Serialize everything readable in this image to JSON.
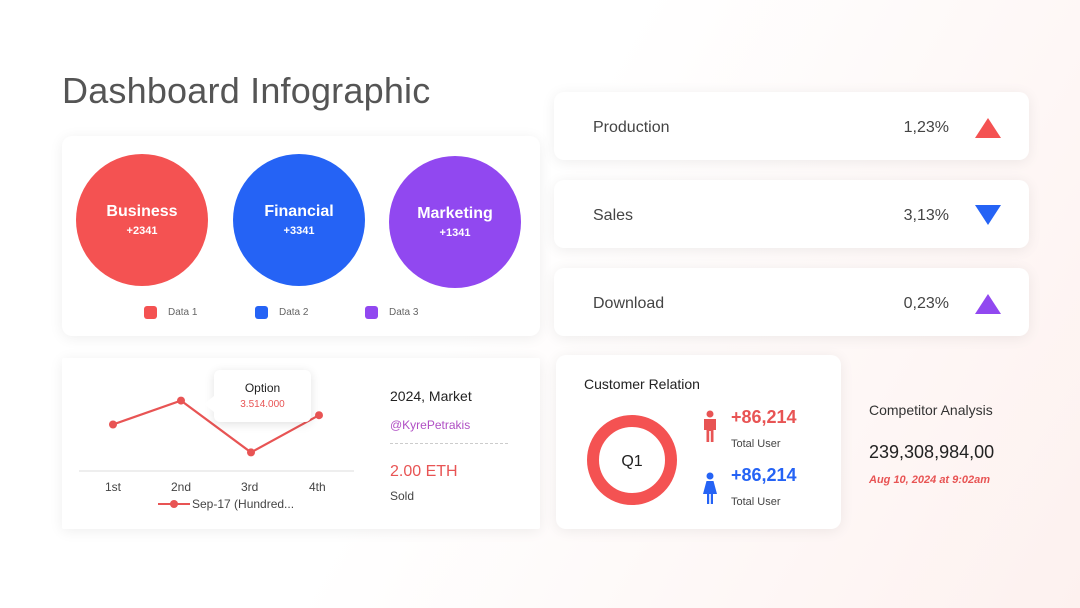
{
  "title": "Dashboard Infographic",
  "colors": {
    "red": "#f45252",
    "blue": "#2563f5",
    "purple": "#9148f0"
  },
  "categories": [
    {
      "label": "Business",
      "value": "+2341",
      "legend": "Data 1",
      "color": "#f45252"
    },
    {
      "label": "Financial",
      "value": "+3341",
      "legend": "Data 2",
      "color": "#2563f5"
    },
    {
      "label": "Marketing",
      "value": "+1341",
      "legend": "Data 3",
      "color": "#9148f0"
    }
  ],
  "stats": [
    {
      "label": "Production",
      "value": "1,23%",
      "trend": "up",
      "color": "#f45252"
    },
    {
      "label": "Sales",
      "value": "3,13%",
      "trend": "down",
      "color": "#2563f5"
    },
    {
      "label": "Download",
      "value": "0,23%",
      "trend": "up",
      "color": "#9148f0"
    }
  ],
  "chart_data": {
    "type": "line",
    "categories": [
      "1st",
      "2nd",
      "3rd",
      "4th"
    ],
    "series": [
      {
        "name": "Sep-17 (Hundred...",
        "values": [
          3.0,
          3.514,
          2.4,
          3.2
        ],
        "color": "#e85454"
      }
    ],
    "tooltip": {
      "title": "Option",
      "value": "3.514.000"
    },
    "grid": false
  },
  "market": {
    "title": "2024, Market",
    "handle": "@KyrePetrakis",
    "price": "2.00 ETH",
    "sub": "Sold"
  },
  "customer_relation": {
    "title": "Customer Relation",
    "donut_label": "Q1",
    "donut_split": [
      0.92,
      0.08
    ],
    "male": {
      "value": "+86,214",
      "label": "Total User",
      "color": "#e85454"
    },
    "female": {
      "value": "+86,214",
      "label": "Total User",
      "color": "#2563f5"
    }
  },
  "competitor": {
    "title": "Competitor Analysis",
    "value": "239,308,984,00",
    "date": "Aug 10, 2024 at 9:02am"
  },
  "icons": {
    "male": "male-user-icon",
    "female": "female-user-icon",
    "up": "triangle-up-icon",
    "down": "triangle-down-icon"
  }
}
